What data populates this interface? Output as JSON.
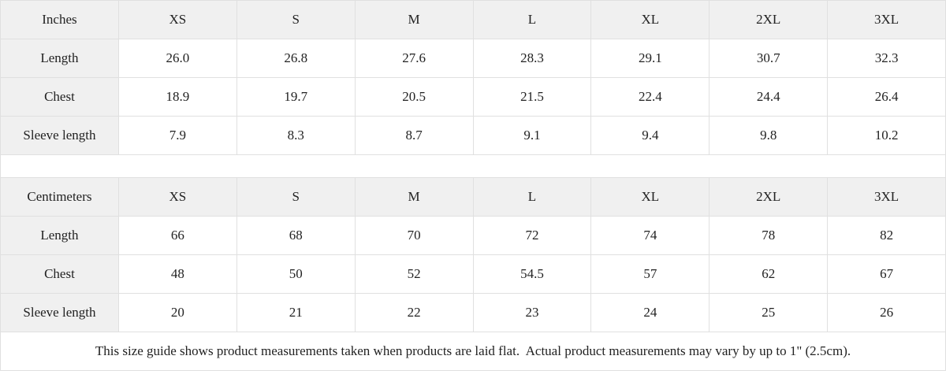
{
  "colors": {
    "header_bg": "#f0f0f0",
    "border": "#e0e0e0",
    "text": "#222222",
    "background": "#ffffff"
  },
  "size_guide": {
    "inches": {
      "unit_label": "Inches",
      "sizes": [
        "XS",
        "S",
        "M",
        "L",
        "XL",
        "2XL",
        "3XL"
      ],
      "rows": [
        {
          "label": "Length",
          "values": [
            "26.0",
            "26.8",
            "27.6",
            "28.3",
            "29.1",
            "30.7",
            "32.3"
          ]
        },
        {
          "label": "Chest",
          "values": [
            "18.9",
            "19.7",
            "20.5",
            "21.5",
            "22.4",
            "24.4",
            "26.4"
          ]
        },
        {
          "label": "Sleeve length",
          "values": [
            "7.9",
            "8.3",
            "8.7",
            "9.1",
            "9.4",
            "9.8",
            "10.2"
          ]
        }
      ]
    },
    "centimeters": {
      "unit_label": "Centimeters",
      "sizes": [
        "XS",
        "S",
        "M",
        "L",
        "XL",
        "2XL",
        "3XL"
      ],
      "rows": [
        {
          "label": "Length",
          "values": [
            "66",
            "68",
            "70",
            "72",
            "74",
            "78",
            "82"
          ]
        },
        {
          "label": "Chest",
          "values": [
            "48",
            "50",
            "52",
            "54.5",
            "57",
            "62",
            "67"
          ]
        },
        {
          "label": "Sleeve length",
          "values": [
            "20",
            "21",
            "22",
            "23",
            "24",
            "25",
            "26"
          ]
        }
      ]
    },
    "footnote": "This size guide shows product measurements taken when products are laid flat.  Actual product measurements may vary by up to 1\" (2.5cm)."
  }
}
